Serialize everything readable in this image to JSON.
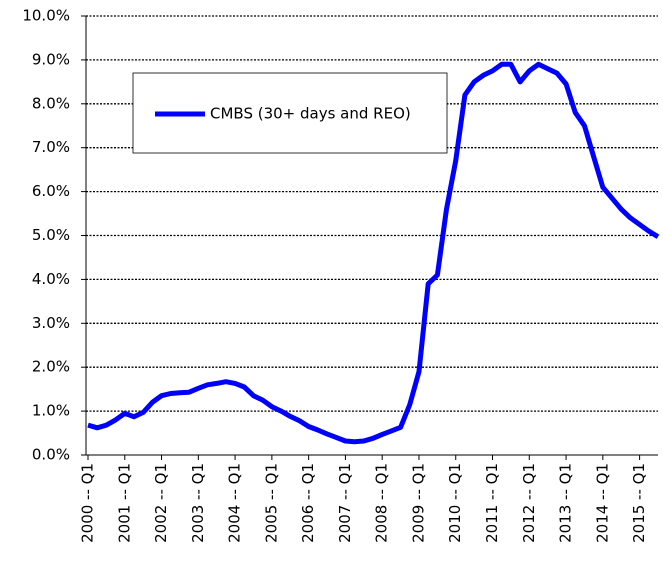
{
  "chart_data": {
    "type": "line",
    "categories": [
      "2000 -- Q1",
      null,
      null,
      null,
      "2001 -- Q1",
      null,
      null,
      null,
      "2002 -- Q1",
      null,
      null,
      null,
      "2003 -- Q1",
      null,
      null,
      null,
      "2004 -- Q1",
      null,
      null,
      null,
      "2005 -- Q1",
      null,
      null,
      null,
      "2006 -- Q1",
      null,
      null,
      null,
      "2007 -- Q1",
      null,
      null,
      null,
      "2008 -- Q1",
      null,
      null,
      null,
      "2009 -- Q1",
      null,
      null,
      null,
      "2010 -- Q1",
      null,
      null,
      null,
      "2011 -- Q1",
      null,
      null,
      null,
      "2012 -- Q1",
      null,
      null,
      null,
      "2013 -- Q1",
      null,
      null,
      null,
      "2014 -- Q1",
      null,
      null,
      null,
      "2015 -- Q1",
      null,
      null
    ],
    "series": [
      {
        "name": "CMBS (30+ days and REO)",
        "color": "#0000ff",
        "values": [
          0.68,
          0.62,
          0.68,
          0.8,
          0.95,
          0.87,
          0.97,
          1.2,
          1.35,
          1.4,
          1.42,
          1.43,
          1.52,
          1.6,
          1.63,
          1.67,
          1.63,
          1.55,
          1.35,
          1.25,
          1.1,
          1.0,
          0.88,
          0.78,
          0.65,
          0.57,
          0.48,
          0.4,
          0.32,
          0.3,
          0.32,
          0.38,
          0.47,
          0.55,
          0.63,
          1.15,
          1.9,
          3.9,
          4.1,
          5.6,
          6.7,
          8.2,
          8.5,
          8.65,
          8.75,
          8.9,
          8.9,
          8.5,
          8.75,
          8.9,
          8.8,
          8.7,
          8.45,
          7.8,
          7.5,
          6.8,
          6.1,
          5.85,
          5.6,
          5.4,
          5.25,
          5.1,
          4.97
        ]
      }
    ],
    "ylim": [
      0,
      10
    ],
    "yticks": [
      {
        "value": 0,
        "label": "0.0%"
      },
      {
        "value": 1,
        "label": "1.0%"
      },
      {
        "value": 2,
        "label": "2.0%"
      },
      {
        "value": 3,
        "label": "3.0%"
      },
      {
        "value": 4,
        "label": "4.0%"
      },
      {
        "value": 5,
        "label": "5.0%"
      },
      {
        "value": 6,
        "label": "6.0%"
      },
      {
        "value": 7,
        "label": "7.0%"
      },
      {
        "value": 8,
        "label": "8.0%"
      },
      {
        "value": 9,
        "label": "9.0%"
      },
      {
        "value": 10,
        "label": "10.0%"
      }
    ],
    "grid": true
  }
}
